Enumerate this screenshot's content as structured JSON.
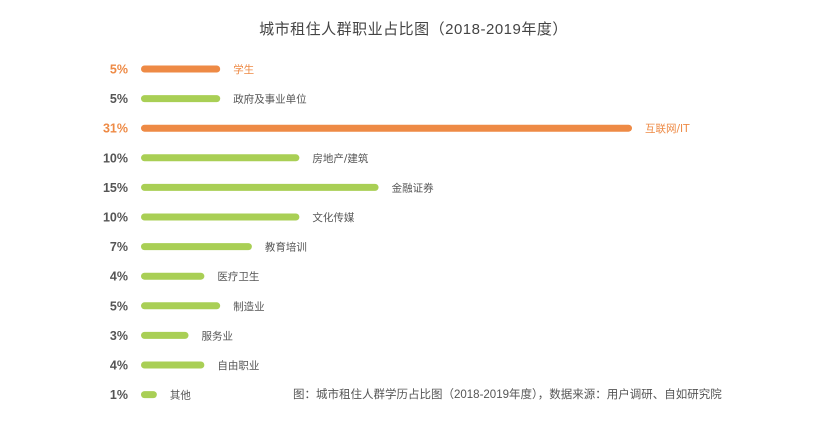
{
  "chart_data": {
    "type": "bar",
    "orientation": "horizontal",
    "title": "城市租住人群职业占比图（2018-2019年度）",
    "footnote": "图：城市租住人群学历占比图（2018-2019年度），数据来源：用户调研、自如研究院",
    "categories": [
      "学生",
      "政府及事业单位",
      "互联网/IT",
      "房地产/建筑",
      "金融证券",
      "文化传媒",
      "教育培训",
      "医疗卫生",
      "制造业",
      "服务业",
      "自由职业",
      "其他"
    ],
    "values": [
      5,
      5,
      31,
      10,
      15,
      10,
      7,
      4,
      5,
      3,
      4,
      1
    ],
    "value_labels": [
      "5%",
      "5%",
      "31%",
      "10%",
      "15%",
      "10%",
      "7%",
      "4%",
      "5%",
      "3%",
      "4%",
      "1%"
    ],
    "highlighted": [
      true,
      false,
      true,
      false,
      false,
      false,
      false,
      false,
      false,
      false,
      false,
      false
    ],
    "xlim": [
      0,
      31
    ],
    "grid": false,
    "legend": "none",
    "colors": {
      "highlight": "#ee8a45",
      "normal": "#a9cf55",
      "value_text": "#555555",
      "category_text": "#555555"
    }
  }
}
